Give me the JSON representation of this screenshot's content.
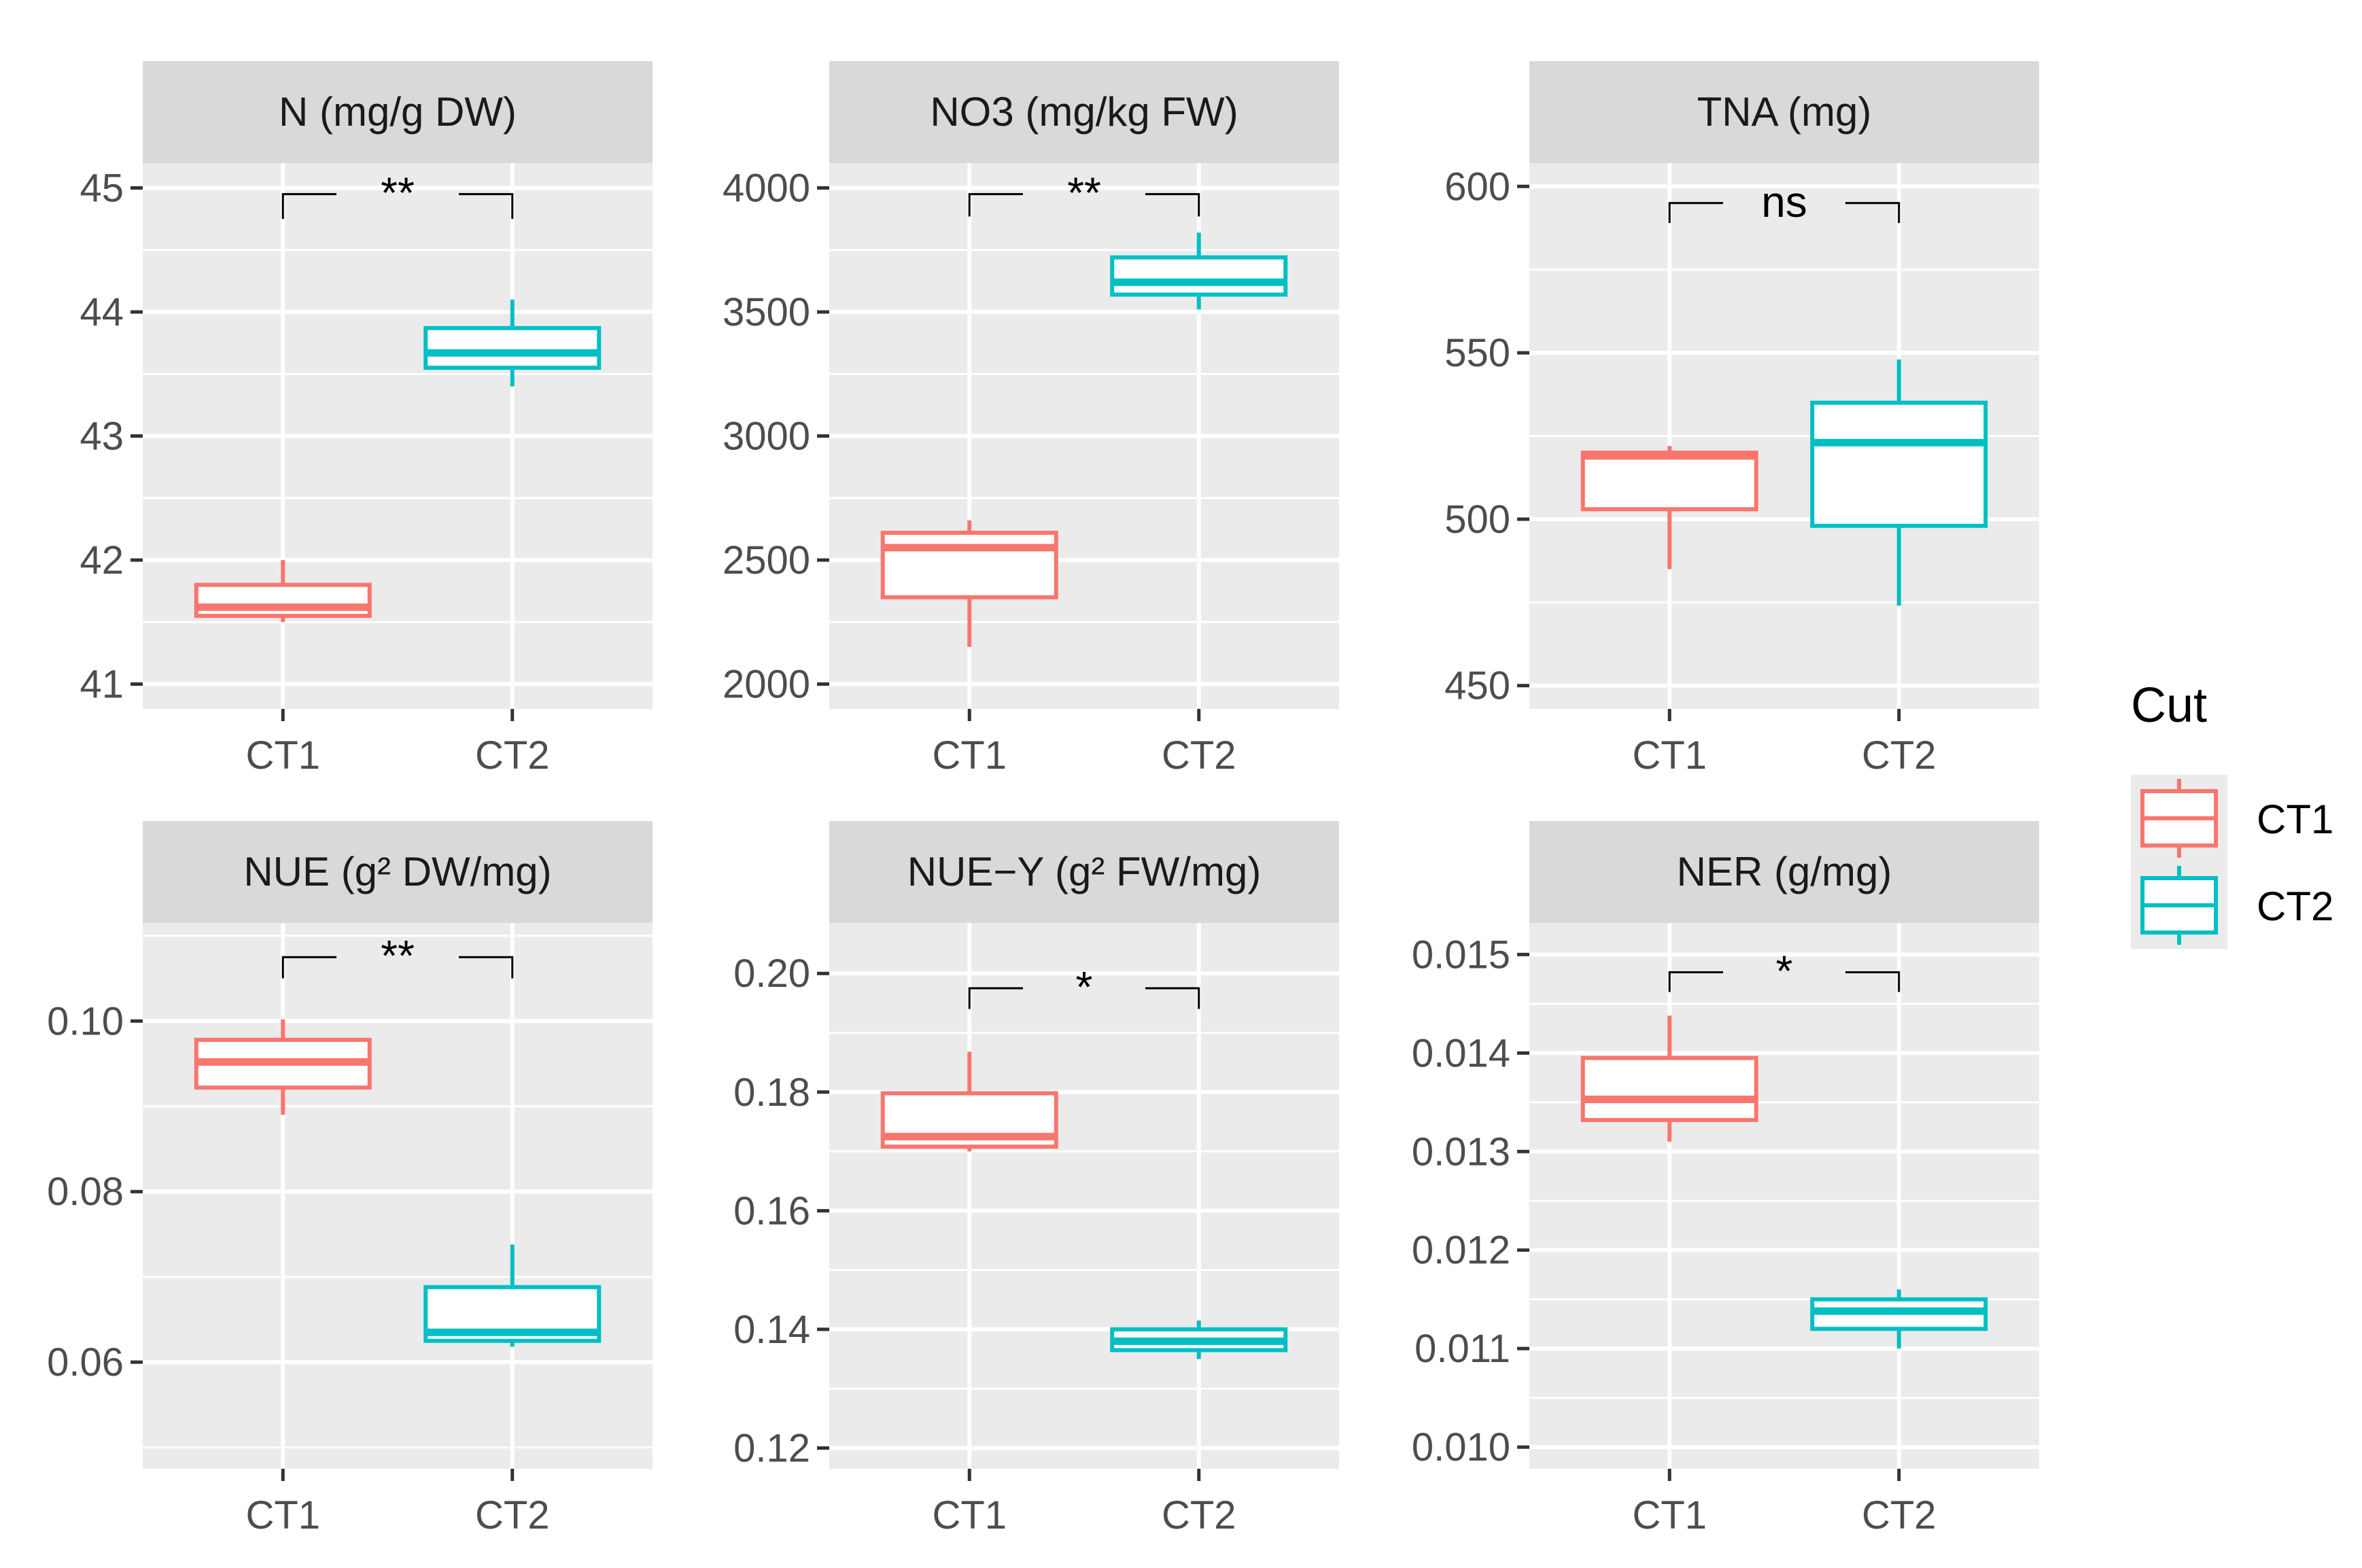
{
  "chart_data": {
    "type": "boxplot",
    "facet_layout": "2 rows x 3 columns",
    "categories": [
      "CT1",
      "CT2"
    ],
    "legend": {
      "title": "Cut",
      "position": "right",
      "entries": [
        {
          "label": "CT1",
          "color": "#F8766D"
        },
        {
          "label": "CT2",
          "color": "#00BFC4"
        }
      ]
    },
    "colors": {
      "panel_bg": "#EBEBEB",
      "strip_bg": "#D9D9D9",
      "grid": "#FFFFFF",
      "ct1": "#F8766D",
      "ct2": "#00BFC4"
    },
    "panels": [
      {
        "title": "N (mg/g DW)",
        "ylim": [
          40.8,
          45.2
        ],
        "yticks": [
          {
            "value": 41,
            "label": "41"
          },
          {
            "value": 42,
            "label": "42"
          },
          {
            "value": 43,
            "label": "43"
          },
          {
            "value": 44,
            "label": "44"
          },
          {
            "value": 45,
            "label": "45"
          }
        ],
        "significance": {
          "label": "**",
          "level": 44.95,
          "drop": 0.2
        },
        "boxes": [
          {
            "group": "CT1",
            "whisker_low": 41.5,
            "q1": 41.55,
            "median": 41.62,
            "q3": 41.8,
            "whisker_high": 42.0
          },
          {
            "group": "CT2",
            "whisker_low": 43.4,
            "q1": 43.55,
            "median": 43.67,
            "q3": 43.87,
            "whisker_high": 44.1
          }
        ]
      },
      {
        "title": "NO3 (mg/kg FW)",
        "ylim": [
          1900,
          4100
        ],
        "yticks": [
          {
            "value": 2000,
            "label": "2000"
          },
          {
            "value": 2500,
            "label": "2500"
          },
          {
            "value": 3000,
            "label": "3000"
          },
          {
            "value": 3500,
            "label": "3500"
          },
          {
            "value": 4000,
            "label": "4000"
          }
        ],
        "significance": {
          "label": "**",
          "level": 3975,
          "drop": 90
        },
        "boxes": [
          {
            "group": "CT1",
            "whisker_low": 2150,
            "q1": 2350,
            "median": 2550,
            "q3": 2610,
            "whisker_high": 2660
          },
          {
            "group": "CT2",
            "whisker_low": 3510,
            "q1": 3570,
            "median": 3620,
            "q3": 3720,
            "whisker_high": 3820
          }
        ]
      },
      {
        "title": "TNA (mg)",
        "ylim": [
          443,
          607
        ],
        "yticks": [
          {
            "value": 450,
            "label": "450"
          },
          {
            "value": 500,
            "label": "500"
          },
          {
            "value": 550,
            "label": "550"
          },
          {
            "value": 600,
            "label": "600"
          }
        ],
        "significance": {
          "label": "ns",
          "level": 595,
          "drop": 6
        },
        "boxes": [
          {
            "group": "CT1",
            "whisker_low": 485,
            "q1": 503,
            "median": 519,
            "q3": 520,
            "whisker_high": 522
          },
          {
            "group": "CT2",
            "whisker_low": 474,
            "q1": 498,
            "median": 523,
            "q3": 535,
            "whisker_high": 548
          }
        ]
      },
      {
        "title": "NUE (g² DW/mg)",
        "ylim": [
          0.0475,
          0.1115
        ],
        "yticks": [
          {
            "value": 0.06,
            "label": "0.06"
          },
          {
            "value": 0.08,
            "label": "0.08"
          },
          {
            "value": 0.1,
            "label": "0.10"
          }
        ],
        "significance": {
          "label": "**",
          "level": 0.1075,
          "drop": 0.0025
        },
        "boxes": [
          {
            "group": "CT1",
            "whisker_low": 0.089,
            "q1": 0.0922,
            "median": 0.0952,
            "q3": 0.0978,
            "whisker_high": 0.1002
          },
          {
            "group": "CT2",
            "whisker_low": 0.0618,
            "q1": 0.0625,
            "median": 0.0635,
            "q3": 0.0688,
            "whisker_high": 0.0738
          }
        ]
      },
      {
        "title": "NUE−Y (g² FW/mg)",
        "ylim": [
          0.1165,
          0.2085
        ],
        "yticks": [
          {
            "value": 0.12,
            "label": "0.12"
          },
          {
            "value": 0.14,
            "label": "0.14"
          },
          {
            "value": 0.16,
            "label": "0.16"
          },
          {
            "value": 0.18,
            "label": "0.18"
          },
          {
            "value": 0.2,
            "label": "0.20"
          }
        ],
        "significance": {
          "label": "*",
          "level": 0.1975,
          "drop": 0.0035
        },
        "boxes": [
          {
            "group": "CT1",
            "whisker_low": 0.17,
            "q1": 0.1708,
            "median": 0.1725,
            "q3": 0.1798,
            "whisker_high": 0.1868
          },
          {
            "group": "CT2",
            "whisker_low": 0.135,
            "q1": 0.1365,
            "median": 0.138,
            "q3": 0.14,
            "whisker_high": 0.1415
          }
        ]
      },
      {
        "title": "NER (g/mg)",
        "ylim": [
          0.00978,
          0.01532
        ],
        "yticks": [
          {
            "value": 0.01,
            "label": "0.010"
          },
          {
            "value": 0.011,
            "label": "0.011"
          },
          {
            "value": 0.012,
            "label": "0.012"
          },
          {
            "value": 0.013,
            "label": "0.013"
          },
          {
            "value": 0.014,
            "label": "0.014"
          },
          {
            "value": 0.015,
            "label": "0.015"
          }
        ],
        "significance": {
          "label": "*",
          "level": 0.01482,
          "drop": 0.0002
        },
        "boxes": [
          {
            "group": "CT1",
            "whisker_low": 0.0131,
            "q1": 0.01332,
            "median": 0.01353,
            "q3": 0.01395,
            "whisker_high": 0.01438
          },
          {
            "group": "CT2",
            "whisker_low": 0.011,
            "q1": 0.0112,
            "median": 0.01138,
            "q3": 0.0115,
            "whisker_high": 0.0116
          }
        ]
      }
    ]
  }
}
